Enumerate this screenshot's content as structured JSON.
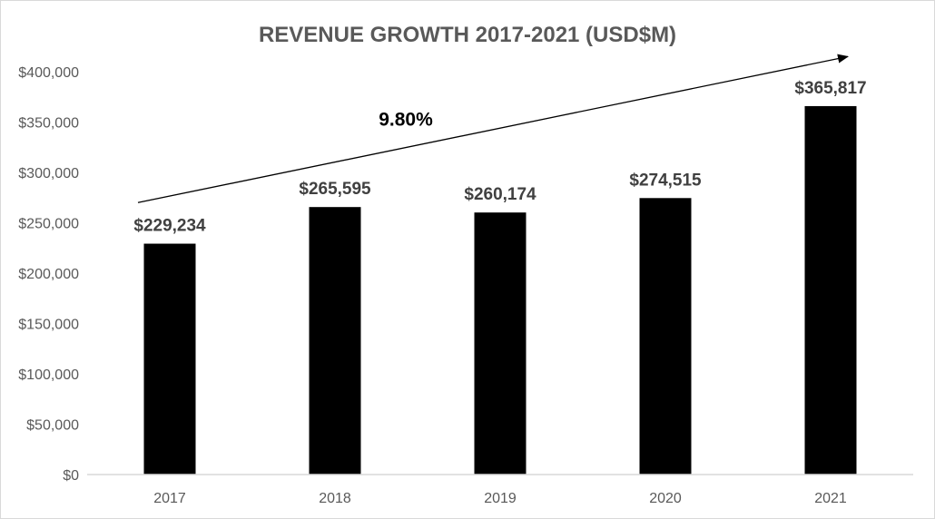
{
  "chart_data": {
    "type": "bar",
    "title": "REVENUE GROWTH 2017-2021 (USD$M)",
    "categories": [
      "2017",
      "2018",
      "2019",
      "2020",
      "2021"
    ],
    "values": [
      229234,
      265595,
      260174,
      274515,
      365817
    ],
    "value_labels": [
      "$229,234",
      "$265,595",
      "$260,174",
      "$274,515",
      "$365,817"
    ],
    "xlabel": "",
    "ylabel": "",
    "ylim": [
      0,
      400000
    ],
    "yticks": [
      0,
      50000,
      100000,
      150000,
      200000,
      250000,
      300000,
      350000,
      400000
    ],
    "ytick_labels": [
      "$0",
      "$50,000",
      "$100,000",
      "$150,000",
      "$200,000",
      "$250,000",
      "$300,000",
      "$350,000",
      "$400,000"
    ],
    "grid": false,
    "legend": "none",
    "annotation": {
      "text": "9.80%",
      "type": "arrow",
      "from_value": 270000,
      "to_value": 415000
    },
    "colors": {
      "bar": "#000000",
      "title": "#595959",
      "tick": "#595959",
      "label": "#404040",
      "axis": "#d9d9d9"
    }
  }
}
